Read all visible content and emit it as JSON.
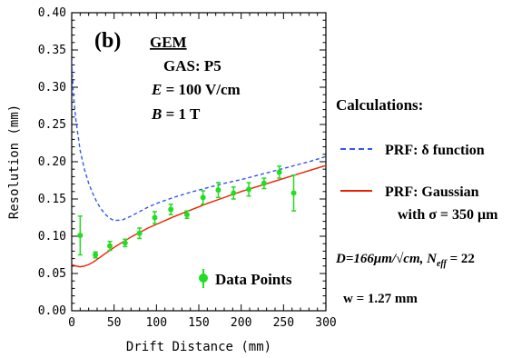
{
  "chart_data": {
    "type": "line",
    "panel_label": "(b)",
    "xlabel": "Drift Distance (mm)",
    "ylabel": "Resolution (mm)",
    "xlim": [
      0,
      300
    ],
    "ylim": [
      0,
      0.4
    ],
    "xticks": [
      "0",
      "50",
      "100",
      "150",
      "200",
      "250",
      "300"
    ],
    "yticks": [
      "0.00",
      "0.05",
      "0.10",
      "0.15",
      "0.20",
      "0.25",
      "0.30",
      "0.35",
      "0.40"
    ],
    "grid": false,
    "conditions": {
      "detector": "GEM",
      "gas": "GAS: P5",
      "field_var": "E",
      "field_val": " = 100 V/cm",
      "mag_var": "B",
      "mag_val": " = 1 T"
    },
    "legend": {
      "heading": "Calculations:",
      "delta_label": "PRF: δ function",
      "gauss_label_1": "PRF: Gaussian",
      "gauss_label_2": "with σ = 350 μm",
      "data_label": "Data Points",
      "diffusion_text": "D=166μm/√cm, N",
      "neff_sub": "eff",
      "neff_val": " = 22",
      "w_text": "w = 1.27 mm"
    },
    "colors": {
      "delta": "#3355ee",
      "gauss": "#ee2200",
      "data": "#22dd22"
    },
    "series": [
      {
        "name": "PRF: δ function",
        "style": "dashed",
        "x": [
          0,
          2,
          5,
          10,
          15,
          20,
          25,
          30,
          35,
          40,
          45,
          50,
          60,
          70,
          80,
          90,
          100,
          120,
          140,
          160,
          180,
          200,
          220,
          240,
          260,
          280,
          300
        ],
        "y": [
          0.335,
          0.29,
          0.255,
          0.215,
          0.19,
          0.171,
          0.157,
          0.145,
          0.136,
          0.129,
          0.124,
          0.121,
          0.122,
          0.127,
          0.133,
          0.139,
          0.144,
          0.152,
          0.159,
          0.165,
          0.171,
          0.176,
          0.182,
          0.188,
          0.194,
          0.2,
          0.207
        ]
      },
      {
        "name": "PRF: Gaussian with σ = 350 μm",
        "style": "solid",
        "x": [
          0,
          5,
          10,
          15,
          20,
          25,
          30,
          40,
          50,
          60,
          70,
          80,
          90,
          100,
          120,
          140,
          160,
          180,
          200,
          220,
          240,
          260,
          280,
          300
        ],
        "y": [
          0.062,
          0.06,
          0.059,
          0.06,
          0.062,
          0.065,
          0.069,
          0.077,
          0.085,
          0.092,
          0.099,
          0.105,
          0.111,
          0.116,
          0.126,
          0.135,
          0.144,
          0.152,
          0.16,
          0.167,
          0.174,
          0.181,
          0.188,
          0.195
        ]
      }
    ],
    "data_points": {
      "name": "Data Points",
      "x": [
        10,
        28,
        45,
        63,
        80,
        98,
        117,
        136,
        155,
        173,
        191,
        209,
        227,
        245,
        262
      ],
      "y": [
        0.101,
        0.075,
        0.087,
        0.091,
        0.104,
        0.125,
        0.136,
        0.129,
        0.152,
        0.162,
        0.158,
        0.163,
        0.171,
        0.186,
        0.158
      ],
      "err": [
        0.026,
        0.004,
        0.006,
        0.005,
        0.007,
        0.008,
        0.007,
        0.005,
        0.009,
        0.01,
        0.008,
        0.009,
        0.007,
        0.008,
        0.024
      ]
    }
  }
}
